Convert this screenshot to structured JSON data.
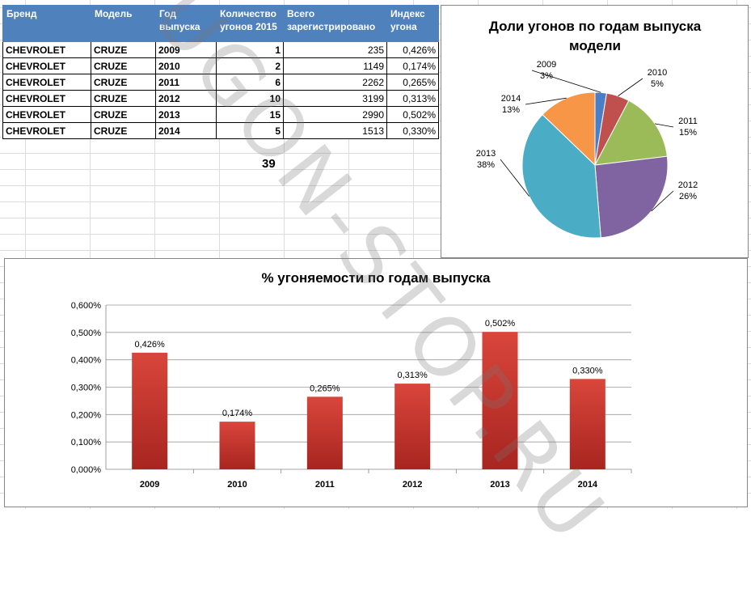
{
  "table": {
    "headers": [
      "Бренд",
      "Модель",
      "Год выпуска",
      "Количество угонов 2015",
      "Всего зарегистрировано",
      "Индекс угона"
    ],
    "rows": [
      [
        "CHEVROLET",
        "CRUZE",
        "2009",
        "1",
        "235",
        "0,426%"
      ],
      [
        "CHEVROLET",
        "CRUZE",
        "2010",
        "2",
        "1149",
        "0,174%"
      ],
      [
        "CHEVROLET",
        "CRUZE",
        "2011",
        "6",
        "2262",
        "0,265%"
      ],
      [
        "CHEVROLET",
        "CRUZE",
        "2012",
        "10",
        "3199",
        "0,313%"
      ],
      [
        "CHEVROLET",
        "CRUZE",
        "2013",
        "15",
        "2990",
        "0,502%"
      ],
      [
        "CHEVROLET",
        "CRUZE",
        "2014",
        "5",
        "1513",
        "0,330%"
      ]
    ],
    "total": "39"
  },
  "watermark": "UGON-STOP.RU",
  "chart_data": [
    {
      "type": "pie",
      "title": "Доли угонов по годам выпуска модели",
      "categories": [
        "2009",
        "2010",
        "2011",
        "2012",
        "2013",
        "2014"
      ],
      "values": [
        1,
        2,
        6,
        10,
        15,
        5
      ],
      "labels": [
        "3%",
        "5%",
        "15%",
        "26%",
        "38%",
        "13%"
      ],
      "colors": [
        "#4a7fc7",
        "#c0504d",
        "#9bbb59",
        "#8064a2",
        "#4bacc6",
        "#f79646"
      ]
    },
    {
      "type": "bar",
      "title": "% угоняемости по годам выпуска",
      "categories": [
        "2009",
        "2010",
        "2011",
        "2012",
        "2013",
        "2014"
      ],
      "values": [
        0.426,
        0.174,
        0.265,
        0.313,
        0.502,
        0.33
      ],
      "data_labels": [
        "0,426%",
        "0,174%",
        "0,265%",
        "0,313%",
        "0,502%",
        "0,330%"
      ],
      "yticks": [
        "0,000%",
        "0,100%",
        "0,200%",
        "0,300%",
        "0,400%",
        "0,500%",
        "0,600%"
      ],
      "ylim": [
        0,
        0.6
      ],
      "grid": true,
      "color": "#c0392b"
    }
  ]
}
